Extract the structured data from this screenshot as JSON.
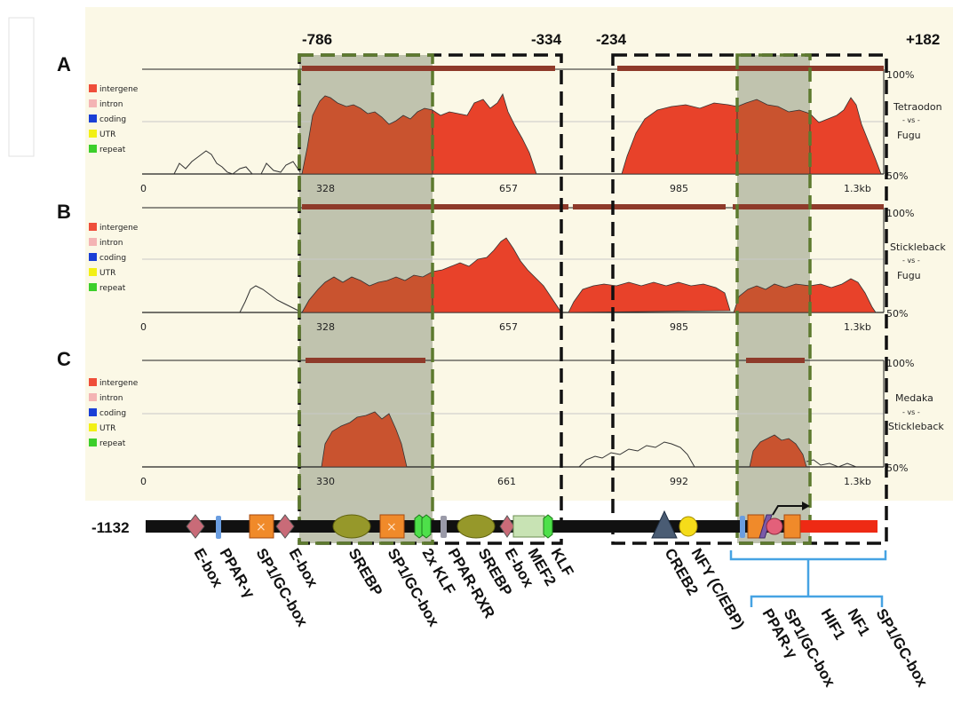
{
  "coordinates": {
    "c1": "-786",
    "c2": "-334",
    "c3": "-234",
    "c4": "+182"
  },
  "legend_items": [
    {
      "label": "intergene",
      "color": "#ef4e3a"
    },
    {
      "label": "intron",
      "color": "#f4b4b4"
    },
    {
      "label": "coding",
      "color": "#1a3fd6"
    },
    {
      "label": "UTR",
      "color": "#f2f014"
    },
    {
      "label": "repeat",
      "color": "#3ccf2a"
    }
  ],
  "panels": [
    {
      "letter": "A",
      "comparison": [
        "Tetraodon",
        "- vs -",
        "Fugu"
      ],
      "y_top": "100%",
      "y_bottom": "50%",
      "ticks": [
        "0",
        "328",
        "657",
        "985",
        "1.3kb"
      ]
    },
    {
      "letter": "B",
      "comparison": [
        "Stickleback",
        "- vs -",
        "Fugu"
      ],
      "y_top": "100%",
      "y_bottom": "50%",
      "ticks": [
        "0",
        "328",
        "657",
        "985",
        "1.3kb"
      ]
    },
    {
      "letter": "C",
      "comparison": [
        "Medaka",
        "- vs -",
        "Stickleback"
      ],
      "y_top": "100%",
      "y_bottom": "50%",
      "ticks": [
        "0",
        "330",
        "661",
        "992",
        "1.3kb"
      ]
    }
  ],
  "promoter": {
    "start_label": "-1132"
  },
  "element_labels": [
    "E-box",
    "PPAR-γ",
    "SP1/GC-box",
    "E-box",
    "SREBP",
    "SP1/GC-box",
    "2x KLF",
    "PPAR-RXR",
    "SREBP",
    "E-box",
    "MEF2",
    "KLF",
    "CREB2",
    "NFY (C/EBP)"
  ],
  "bracket_labels": [
    "PPAR-γ",
    "SP1/GC-box",
    "HIF1",
    "NF1",
    "SP1/GC-box"
  ],
  "colors": {
    "peak_fill": "#e8422a",
    "peak_shaded_fill": "#c9532f",
    "shade_box": "#b9bca7",
    "panel_bg": "#fbf8e6",
    "conserved_bar": "#8e3a2a",
    "dashed_green": "#5d7a2e",
    "bracket_blue": "#46a3e3"
  }
}
